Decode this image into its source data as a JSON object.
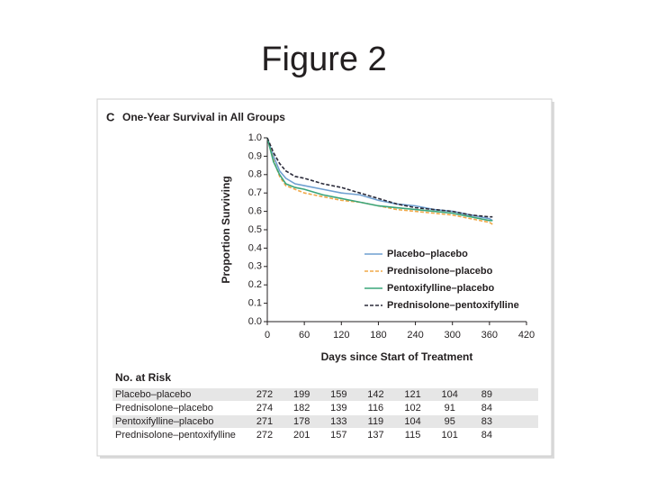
{
  "slide_title": "Figure 2",
  "chart_data": {
    "type": "line",
    "panel_label": "C",
    "title": "One-Year Survival in All Groups",
    "x_label": "Days since Start of Treatment",
    "y_label": "Proportion Surviving",
    "x": [
      0,
      10,
      20,
      30,
      45,
      60,
      90,
      120,
      150,
      180,
      210,
      240,
      270,
      300,
      330,
      360,
      365
    ],
    "series": [
      {
        "name": "Placebo–placebo",
        "color": "#6f9fd0",
        "dash": false,
        "values": [
          1.0,
          0.9,
          0.82,
          0.78,
          0.75,
          0.74,
          0.72,
          0.7,
          0.69,
          0.66,
          0.64,
          0.63,
          0.61,
          0.6,
          0.58,
          0.56,
          0.55
        ]
      },
      {
        "name": "Prednisolone–placebo",
        "color": "#f0a848",
        "dash": true,
        "values": [
          1.0,
          0.88,
          0.79,
          0.74,
          0.72,
          0.7,
          0.68,
          0.66,
          0.65,
          0.63,
          0.61,
          0.6,
          0.59,
          0.58,
          0.56,
          0.54,
          0.53
        ]
      },
      {
        "name": "Pentoxifylline–placebo",
        "color": "#3aa57a",
        "dash": false,
        "values": [
          1.0,
          0.87,
          0.8,
          0.75,
          0.73,
          0.72,
          0.69,
          0.67,
          0.65,
          0.63,
          0.62,
          0.61,
          0.6,
          0.59,
          0.57,
          0.55,
          0.55
        ]
      },
      {
        "name": "Prednisolone–pentoxifylline",
        "color": "#2b2b3a",
        "dash": true,
        "values": [
          1.0,
          0.92,
          0.86,
          0.82,
          0.79,
          0.78,
          0.75,
          0.73,
          0.7,
          0.67,
          0.64,
          0.62,
          0.61,
          0.6,
          0.58,
          0.57,
          0.57
        ]
      }
    ],
    "xlim": [
      0,
      420
    ],
    "xticks": [
      0,
      60,
      120,
      180,
      240,
      300,
      360,
      420
    ],
    "ylim": [
      0,
      1
    ],
    "yticks": [
      {
        "value": 0,
        "label": "0.0"
      },
      0.1,
      0.2,
      0.3,
      0.4,
      0.5,
      0.6,
      0.7,
      0.8,
      0.9,
      {
        "value": 1,
        "label": "1.0"
      }
    ],
    "legend": "lower right",
    "risk_table": {
      "title": "No. at Risk",
      "rows": [
        {
          "name": "Placebo–placebo",
          "values": [
            272,
            199,
            159,
            142,
            121,
            104,
            89
          ]
        },
        {
          "name": "Prednisolone–placebo",
          "values": [
            274,
            182,
            139,
            116,
            102,
            91,
            84
          ]
        },
        {
          "name": "Pentoxifylline–placebo",
          "values": [
            271,
            178,
            133,
            119,
            104,
            95,
            83
          ]
        },
        {
          "name": "Prednisolone–pentoxifylline",
          "values": [
            272,
            201,
            157,
            137,
            115,
            101,
            84
          ]
        }
      ]
    }
  }
}
